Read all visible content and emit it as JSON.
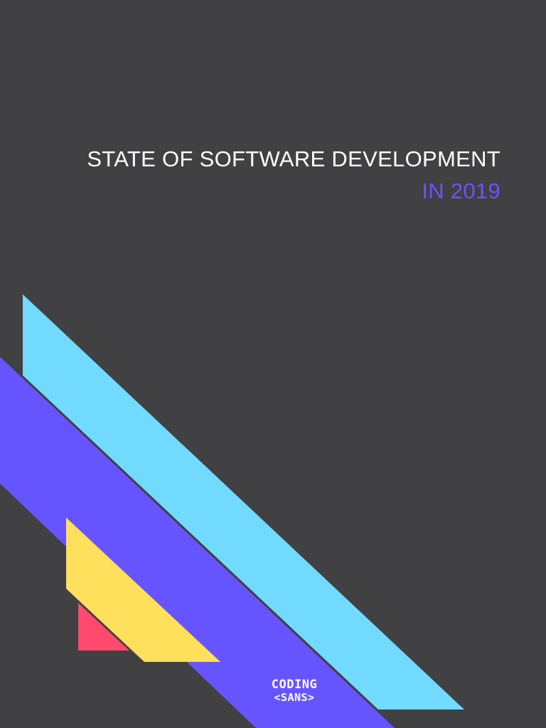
{
  "cover": {
    "title_line1": "STATE OF SOFTWARE DEVELOPMENT",
    "title_line2": "IN 2019",
    "title_color": "#ffffff",
    "accent_color": "#6655ff",
    "background_color": "#414042"
  },
  "shapes": {
    "cyan_color": "#72d9ff",
    "purple_color": "#6655ff",
    "yellow_color": "#ffe05c",
    "pink_color": "#ff4a6e"
  },
  "logo": {
    "line1": "CODING",
    "line2": "<SANS>"
  }
}
